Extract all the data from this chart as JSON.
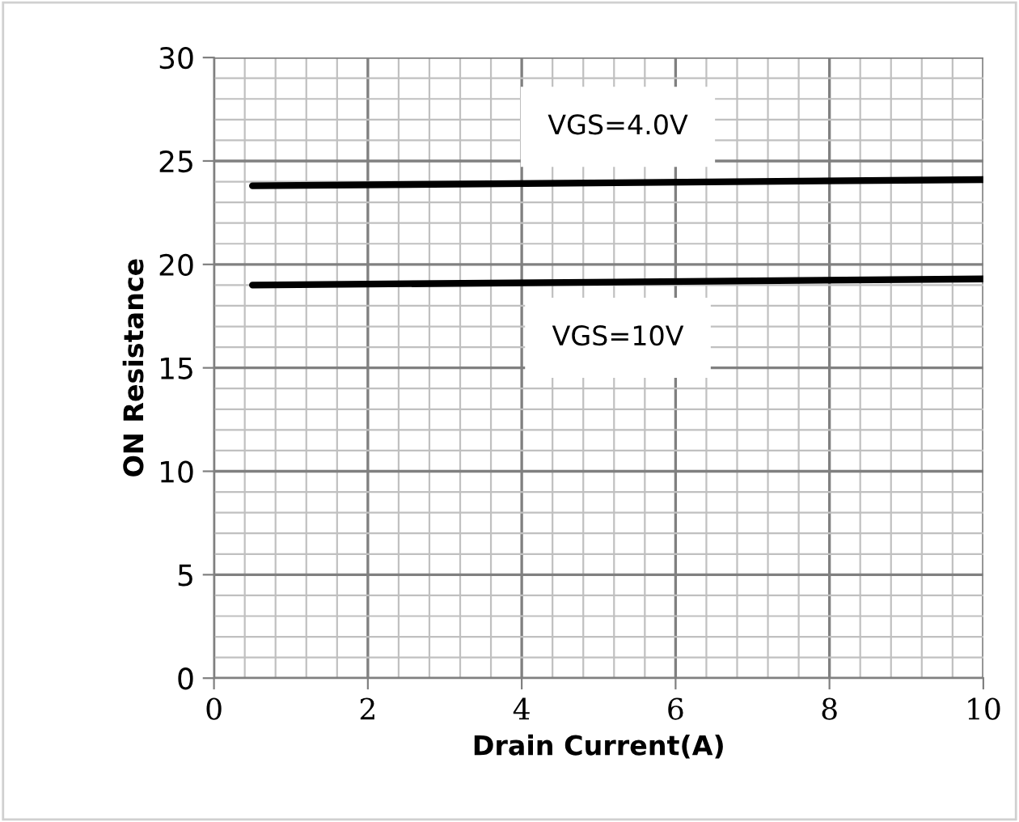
{
  "chart_data": {
    "type": "line",
    "xlabel": "Drain Current(A)",
    "ylabel": "ON Resistance",
    "xlim": [
      0,
      10
    ],
    "xticks": [
      0,
      2,
      4,
      6,
      8,
      10
    ],
    "ylim": [
      0,
      30
    ],
    "yticks": [
      0,
      5,
      10,
      15,
      20,
      25,
      30
    ],
    "grid": true,
    "marker": "none",
    "line_style": "solid",
    "legend": false,
    "x": [
      0.5,
      10
    ],
    "series": [
      {
        "name": "VGS=4.0V",
        "color": "#000000",
        "values": [
          23.8,
          24.1
        ]
      },
      {
        "name": "VGS=10V",
        "color": "#000000",
        "values": [
          19.0,
          19.3
        ]
      }
    ]
  }
}
